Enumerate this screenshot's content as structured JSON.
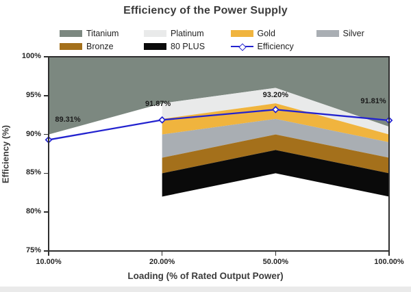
{
  "page": {
    "background": "#ffffff",
    "bottom_strip_color": "#eaeaea"
  },
  "chart_data": {
    "type": "area",
    "title": "Efficiency of the Power Supply",
    "xlabel": "Loading (% of Rated Output Power)",
    "ylabel": "Efficiency (%)",
    "x_categories": [
      "10.00%",
      "20.00%",
      "50.00%",
      "100.00%"
    ],
    "x_values": [
      10,
      20,
      50,
      100
    ],
    "ylim": [
      75,
      100
    ],
    "yticks": [
      {
        "value": 100,
        "label": "100%"
      },
      {
        "value": 95,
        "label": "95%"
      },
      {
        "value": 90,
        "label": "90%"
      },
      {
        "value": 85,
        "label": "85%"
      },
      {
        "value": 80,
        "label": "80%"
      },
      {
        "value": 75,
        "label": "75%"
      }
    ],
    "grid": false,
    "legend_position": "top",
    "bands": [
      {
        "name": "Titanium",
        "color": "#7C8880",
        "lower": [
          90,
          94,
          96,
          91
        ],
        "upper": [
          100,
          100,
          100,
          100
        ]
      },
      {
        "name": "Platinum",
        "color": "#E9EAEA",
        "lower": [
          null,
          92,
          94,
          90
        ],
        "upper": [
          null,
          94,
          96,
          91
        ]
      },
      {
        "name": "Gold",
        "color": "#F0B43E",
        "lower": [
          null,
          90,
          92,
          89
        ],
        "upper": [
          null,
          92,
          94,
          90
        ]
      },
      {
        "name": "Silver",
        "color": "#A9AEB3",
        "lower": [
          null,
          87,
          90,
          87
        ],
        "upper": [
          null,
          90,
          92,
          89
        ]
      },
      {
        "name": "Bronze",
        "color": "#A4701B",
        "lower": [
          null,
          85,
          88,
          85
        ],
        "upper": [
          null,
          87,
          90,
          87
        ]
      },
      {
        "name": "80 PLUS",
        "color": "#0A0A0A",
        "lower": [
          null,
          82,
          85,
          82
        ],
        "upper": [
          null,
          85,
          88,
          85
        ]
      }
    ],
    "series": [
      {
        "name": "Efficiency",
        "type": "line",
        "color": "#2222CF",
        "marker": "open-diamond",
        "values": [
          89.31,
          91.87,
          93.2,
          91.81
        ],
        "point_labels": [
          "89.31%",
          "91.87%",
          "93.20%",
          "91.81%"
        ]
      }
    ]
  }
}
